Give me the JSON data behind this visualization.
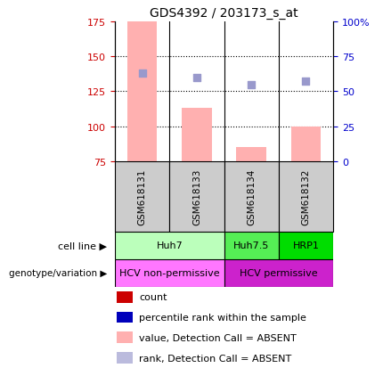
{
  "title": "GDS4392 / 203173_s_at",
  "samples": [
    "GSM618131",
    "GSM618133",
    "GSM618134",
    "GSM618132"
  ],
  "bar_values": [
    175,
    113,
    85,
    100
  ],
  "bar_bottom": 75,
  "scatter_values": [
    138,
    135,
    130,
    132
  ],
  "ylim": [
    75,
    175
  ],
  "y_ticks_left": [
    75,
    100,
    125,
    150,
    175
  ],
  "y_ticks_right": [
    0,
    25,
    50,
    75,
    100
  ],
  "bar_color": "#FFB0B0",
  "scatter_color": "#9999CC",
  "bar_width": 0.55,
  "cell_lines": [
    {
      "label": "Huh7",
      "span": [
        0,
        2
      ],
      "color": "#BBFFBB"
    },
    {
      "label": "Huh7.5",
      "span": [
        2,
        3
      ],
      "color": "#55EE55"
    },
    {
      "label": "HRP1",
      "span": [
        3,
        4
      ],
      "color": "#00DD00"
    }
  ],
  "genotype": [
    {
      "label": "HCV non-permissive",
      "span": [
        0,
        2
      ],
      "color": "#FF77FF"
    },
    {
      "label": "HCV permissive",
      "span": [
        2,
        4
      ],
      "color": "#CC22CC"
    }
  ],
  "legend_items": [
    {
      "color": "#CC0000",
      "label": "count"
    },
    {
      "color": "#0000BB",
      "label": "percentile rank within the sample"
    },
    {
      "color": "#FFB0B0",
      "label": "value, Detection Call = ABSENT"
    },
    {
      "color": "#BBBBDD",
      "label": "rank, Detection Call = ABSENT"
    }
  ],
  "left_label_color": "#CC0000",
  "right_label_color": "#0000CC",
  "sample_box_color": "#CCCCCC",
  "grid_color": "#000000"
}
